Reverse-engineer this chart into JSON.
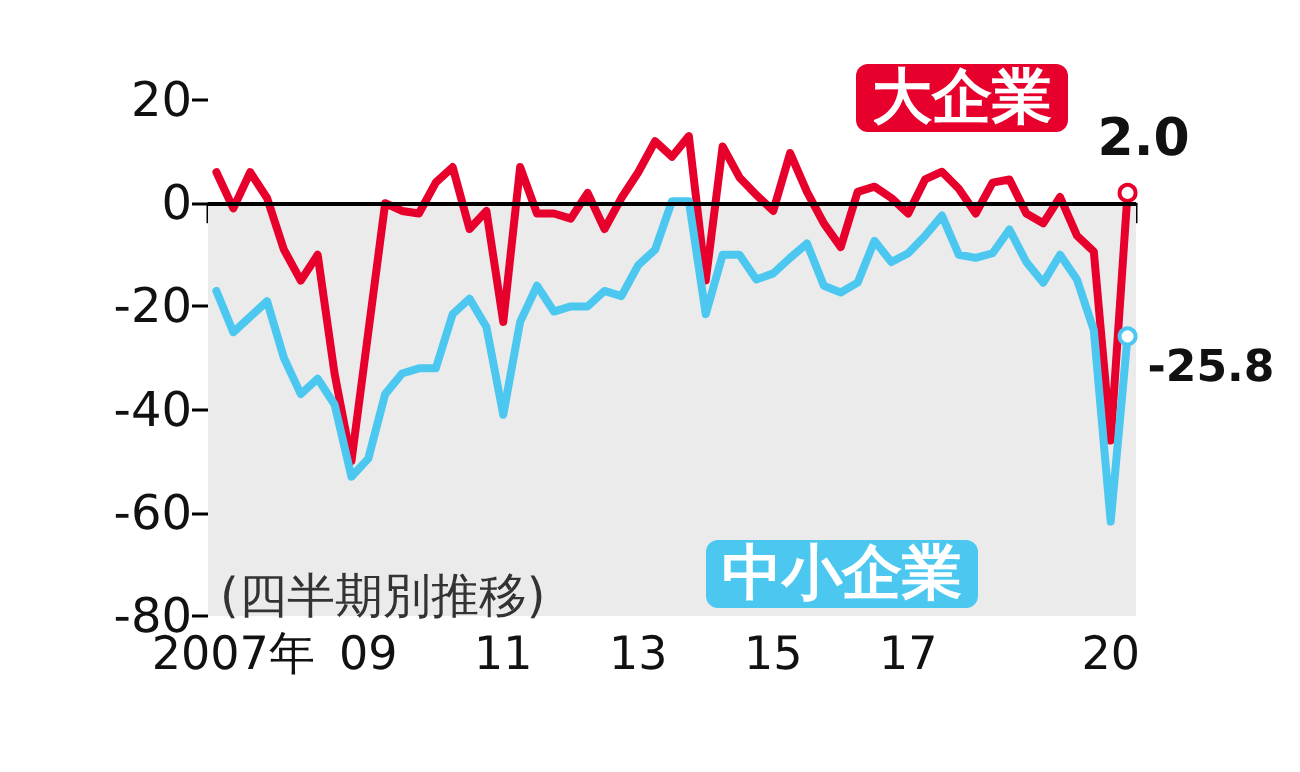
{
  "chart_data": {
    "type": "line",
    "categories": [
      null,
      "2007年",
      null,
      null,
      null,
      null,
      null,
      null,
      null,
      "09",
      null,
      null,
      null,
      null,
      null,
      null,
      null,
      "11",
      null,
      null,
      null,
      null,
      null,
      null,
      null,
      "13",
      null,
      null,
      null,
      null,
      null,
      null,
      null,
      "15",
      null,
      null,
      null,
      null,
      null,
      null,
      null,
      "17",
      null,
      null,
      null,
      null,
      null,
      null,
      null,
      null,
      null,
      null,
      null,
      "20",
      null
    ],
    "series": [
      {
        "name": "大企業",
        "color": "#e8002d",
        "values": [
          6,
          -1,
          6,
          1,
          -9,
          -15,
          -10,
          -33,
          -50,
          -25,
          0,
          -1.5,
          -2,
          4,
          7,
          -5,
          -1.5,
          -23,
          7,
          -2,
          -2,
          -3,
          2,
          -5,
          1,
          6,
          12,
          9,
          13,
          -15,
          11,
          5,
          1.6,
          -1.5,
          9.7,
          2.2,
          -3.9,
          -8.5,
          2.2,
          3.2,
          1,
          -2,
          4.6,
          6.1,
          2.8,
          -2,
          4,
          4.6,
          -2,
          -3.9,
          1.2,
          -6.3,
          -9.4,
          -46,
          2.0
        ],
        "value_labels": [
          null,
          null,
          null,
          null,
          null,
          null,
          null,
          null,
          null,
          null,
          null,
          null,
          null,
          null,
          null,
          null,
          null,
          null,
          null,
          null,
          null,
          null,
          null,
          null,
          null,
          null,
          null,
          null,
          null,
          null,
          null,
          null,
          null,
          null,
          null,
          null,
          null,
          null,
          null,
          null,
          null,
          null,
          null,
          null,
          null,
          null,
          null,
          null,
          null,
          null,
          null,
          null,
          null,
          null,
          "2.0"
        ]
      },
      {
        "name": "中小企業",
        "color": "#4cc8f0",
        "values": [
          -17,
          -25,
          -22,
          -19,
          -30,
          -37,
          -34,
          -39,
          -53,
          -49.5,
          -37,
          -33,
          -32,
          -32,
          -21.5,
          -18.5,
          -24,
          -41,
          -23,
          -16,
          -21,
          -20,
          -20,
          -17,
          -18,
          -12,
          -9,
          0.4,
          0.4,
          -21.5,
          -10,
          -10,
          -14.8,
          -13.6,
          -10.6,
          -7.8,
          -16,
          -17.3,
          -15.4,
          -7.3,
          -11.4,
          -9.7,
          -6.3,
          -2.4,
          -10,
          -10.6,
          -9.7,
          -5.1,
          -11.4,
          -15.4,
          -10,
          -14.8,
          -24.6,
          -61.7,
          -25.8
        ],
        "value_labels": [
          null,
          null,
          null,
          null,
          null,
          null,
          null,
          null,
          null,
          null,
          null,
          null,
          null,
          null,
          null,
          null,
          null,
          null,
          null,
          null,
          null,
          null,
          null,
          null,
          null,
          null,
          null,
          null,
          null,
          null,
          null,
          null,
          null,
          null,
          null,
          null,
          null,
          null,
          null,
          null,
          null,
          null,
          null,
          null,
          null,
          null,
          null,
          null,
          null,
          null,
          null,
          null,
          null,
          null,
          "-25.8"
        ]
      }
    ],
    "ylim": [
      -80,
      20
    ],
    "yticks": [
      -80,
      -60,
      -40,
      -20,
      0,
      20
    ],
    "grid": false,
    "legend": false,
    "annotations": [
      "(四半期別推移)"
    ],
    "ref_lines": [
      {
        "axis": "y",
        "value": 0,
        "label": null,
        "color": "#000000"
      }
    ],
    "bands": [
      {
        "axis": "y",
        "from": -80,
        "to": 0,
        "label": null,
        "color": "#ebebeb"
      }
    ],
    "line_style": "solid"
  }
}
